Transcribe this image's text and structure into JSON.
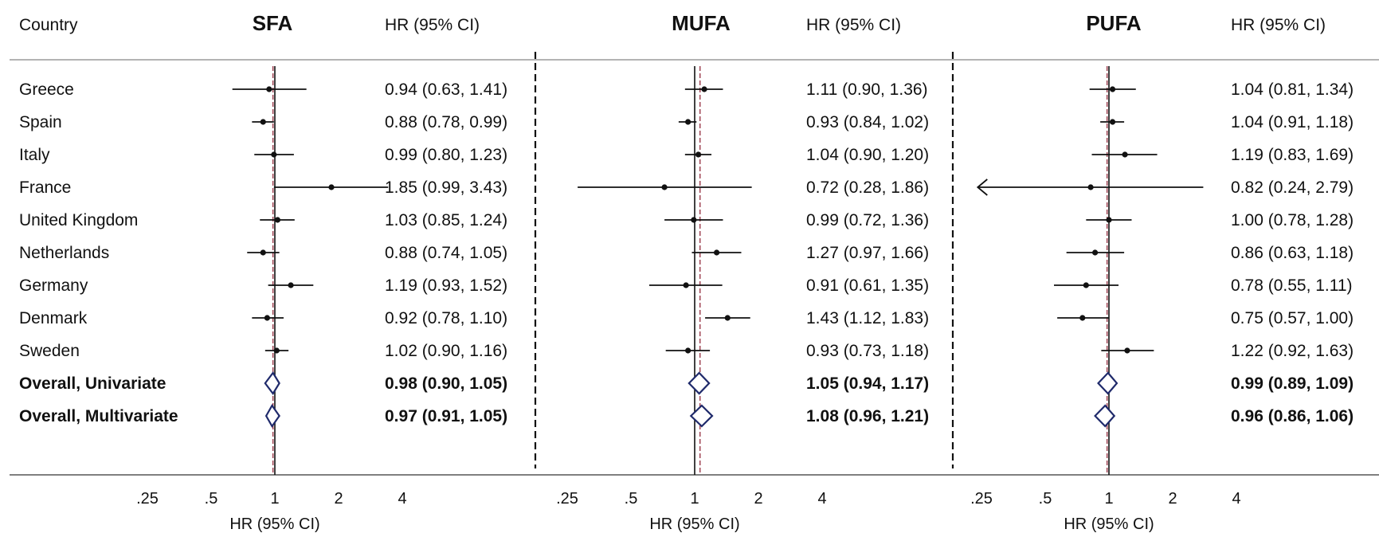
{
  "header": {
    "country_label": "Country",
    "hr_label": "HR (95% CI)"
  },
  "chart_data": {
    "type": "forest",
    "x_scale": "log",
    "reference_line": 1,
    "xlim": [
      0.2,
      4.5
    ],
    "xticks": [
      0.25,
      0.5,
      1,
      2,
      4
    ],
    "xtick_labels": [
      ".25",
      ".5",
      "1",
      "2",
      "4"
    ],
    "xlabel": "HR (95% CI)",
    "rows": [
      "Greece",
      "Spain",
      "Italy",
      "France",
      "United Kingdom",
      "Netherlands",
      "Germany",
      "Denmark",
      "Sweden",
      "Overall, Univariate",
      "Overall, Multivariate"
    ],
    "panels": [
      {
        "title": "SFA",
        "pooled_line": 0.98,
        "estimates": [
          {
            "hr": 0.94,
            "lo": 0.63,
            "hi": 1.41,
            "label": "0.94 (0.63, 1.41)"
          },
          {
            "hr": 0.88,
            "lo": 0.78,
            "hi": 0.99,
            "label": "0.88 (0.78, 0.99)"
          },
          {
            "hr": 0.99,
            "lo": 0.8,
            "hi": 1.23,
            "label": "0.99 (0.80, 1.23)"
          },
          {
            "hr": 1.85,
            "lo": 0.99,
            "hi": 3.43,
            "label": "1.85 (0.99, 3.43)"
          },
          {
            "hr": 1.03,
            "lo": 0.85,
            "hi": 1.24,
            "label": "1.03 (0.85, 1.24)"
          },
          {
            "hr": 0.88,
            "lo": 0.74,
            "hi": 1.05,
            "label": "0.88 (0.74, 1.05)"
          },
          {
            "hr": 1.19,
            "lo": 0.93,
            "hi": 1.52,
            "label": "1.19 (0.93, 1.52)"
          },
          {
            "hr": 0.92,
            "lo": 0.78,
            "hi": 1.1,
            "label": "0.92 (0.78, 1.10)"
          },
          {
            "hr": 1.02,
            "lo": 0.9,
            "hi": 1.16,
            "label": "1.02 (0.90, 1.16)"
          },
          {
            "hr": 0.98,
            "lo": 0.9,
            "hi": 1.05,
            "label": "0.98 (0.90, 1.05)",
            "overall": true
          },
          {
            "hr": 0.97,
            "lo": 0.91,
            "hi": 1.05,
            "label": "0.97 (0.91, 1.05)",
            "overall": true
          }
        ]
      },
      {
        "title": "MUFA",
        "pooled_line": 1.06,
        "estimates": [
          {
            "hr": 1.11,
            "lo": 0.9,
            "hi": 1.36,
            "label": "1.11 (0.90, 1.36)"
          },
          {
            "hr": 0.93,
            "lo": 0.84,
            "hi": 1.02,
            "label": "0.93 (0.84, 1.02)"
          },
          {
            "hr": 1.04,
            "lo": 0.9,
            "hi": 1.2,
            "label": "1.04 (0.90, 1.20)"
          },
          {
            "hr": 0.72,
            "lo": 0.28,
            "hi": 1.86,
            "label": "0.72 (0.28, 1.86)"
          },
          {
            "hr": 0.99,
            "lo": 0.72,
            "hi": 1.36,
            "label": "0.99 (0.72, 1.36)"
          },
          {
            "hr": 1.27,
            "lo": 0.97,
            "hi": 1.66,
            "label": "1.27 (0.97, 1.66)"
          },
          {
            "hr": 0.91,
            "lo": 0.61,
            "hi": 1.35,
            "label": "0.91 (0.61, 1.35)"
          },
          {
            "hr": 1.43,
            "lo": 1.12,
            "hi": 1.83,
            "label": "1.43 (1.12, 1.83)"
          },
          {
            "hr": 0.93,
            "lo": 0.73,
            "hi": 1.18,
            "label": "0.93 (0.73, 1.18)"
          },
          {
            "hr": 1.05,
            "lo": 0.94,
            "hi": 1.17,
            "label": "1.05 (0.94, 1.17)",
            "overall": true
          },
          {
            "hr": 1.08,
            "lo": 0.96,
            "hi": 1.21,
            "label": "1.08 (0.96, 1.21)",
            "overall": true
          }
        ]
      },
      {
        "title": "PUFA",
        "pooled_line": 0.98,
        "estimates": [
          {
            "hr": 1.04,
            "lo": 0.81,
            "hi": 1.34,
            "label": "1.04 (0.81, 1.34)"
          },
          {
            "hr": 1.04,
            "lo": 0.91,
            "hi": 1.18,
            "label": "1.04 (0.91, 1.18)"
          },
          {
            "hr": 1.19,
            "lo": 0.83,
            "hi": 1.69,
            "label": "1.19 (0.83, 1.69)"
          },
          {
            "hr": 0.82,
            "lo": 0.24,
            "hi": 2.79,
            "label": "0.82 (0.24, 2.79)",
            "lo_arrow": true
          },
          {
            "hr": 1.0,
            "lo": 0.78,
            "hi": 1.28,
            "label": "1.00 (0.78, 1.28)"
          },
          {
            "hr": 0.86,
            "lo": 0.63,
            "hi": 1.18,
            "label": "0.86 (0.63, 1.18)"
          },
          {
            "hr": 0.78,
            "lo": 0.55,
            "hi": 1.11,
            "label": "0.78 (0.55, 1.11)"
          },
          {
            "hr": 0.75,
            "lo": 0.57,
            "hi": 1.0,
            "label": "0.75 (0.57, 1.00)"
          },
          {
            "hr": 1.22,
            "lo": 0.92,
            "hi": 1.63,
            "label": "1.22 (0.92, 1.63)"
          },
          {
            "hr": 0.99,
            "lo": 0.89,
            "hi": 1.09,
            "label": "0.99 (0.89, 1.09)",
            "overall": true
          },
          {
            "hr": 0.96,
            "lo": 0.86,
            "hi": 1.06,
            "label": "0.96 (0.86, 1.06)",
            "overall": true
          }
        ]
      }
    ],
    "colors": {
      "marker": "#111111",
      "diamond": "#1f2a6b",
      "pooled_line": "#9b3a4a",
      "rule": "#9a9a9a"
    }
  }
}
